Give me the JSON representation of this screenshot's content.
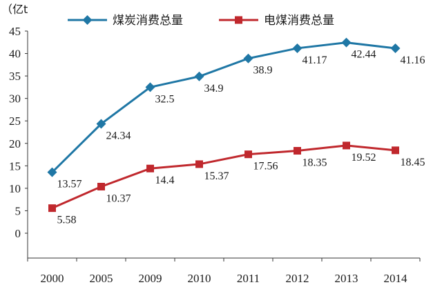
{
  "chart_data": {
    "type": "line",
    "ylabel": "（亿t",
    "categories": [
      "2000",
      "2005",
      "2009",
      "2010",
      "2011",
      "2012",
      "2013",
      "2014"
    ],
    "ylim": [
      0,
      45
    ],
    "yticks": [
      "0",
      "5",
      "10",
      "15",
      "20",
      "25",
      "30",
      "35",
      "40",
      "45"
    ],
    "grid": false,
    "legend_position": "top",
    "series": [
      {
        "name": "煤炭消费总量",
        "color": "#1f77a5",
        "marker": "diamond",
        "values": [
          13.57,
          24.34,
          32.5,
          34.9,
          38.9,
          41.17,
          42.44,
          41.16
        ],
        "labels": [
          "13.57",
          "24.34",
          "32.5",
          "34.9",
          "38.9",
          "41.17",
          "42.44",
          "41.16"
        ]
      },
      {
        "name": "电煤消费总量",
        "color": "#c0282d",
        "marker": "square",
        "values": [
          5.58,
          10.37,
          14.4,
          15.37,
          17.56,
          18.35,
          19.52,
          18.45
        ],
        "labels": [
          "5.58",
          "10.37",
          "14.4",
          "15.37",
          "17.56",
          "18.35",
          "19.52",
          "18.45"
        ]
      }
    ]
  }
}
